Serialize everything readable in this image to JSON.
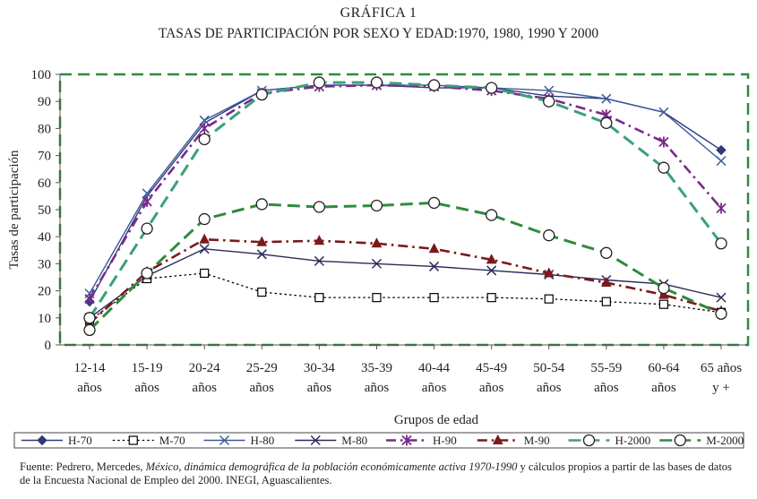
{
  "chart_data": {
    "type": "line",
    "title": "GRÁFICA 1",
    "subtitle": "TASAS DE PARTICIPACIÓN POR SEXO Y EDAD:1970, 1980, 1990 Y 2000",
    "xlabel": "Grupos de edad",
    "ylabel": "Tasas de participación",
    "ylim": [
      0,
      100
    ],
    "yticks": [
      "0",
      "10",
      "20",
      "30",
      "40",
      "50",
      "60",
      "70",
      "80",
      "90",
      "100"
    ],
    "categories": [
      [
        "12-14",
        "años"
      ],
      [
        "15-19",
        "años"
      ],
      [
        "20-24",
        "años"
      ],
      [
        "25-29",
        "años"
      ],
      [
        "30-34",
        "años"
      ],
      [
        "35-39",
        "años"
      ],
      [
        "40-44",
        "años"
      ],
      [
        "45-49",
        "años"
      ],
      [
        "50-54",
        "años"
      ],
      [
        "55-59",
        "años"
      ],
      [
        "60-64",
        "años"
      ],
      [
        "65 años",
        "y +"
      ]
    ],
    "series": [
      {
        "name": "H-70",
        "color": "#2e3a78",
        "dash": "solid",
        "marker": "diamond",
        "markers_at": [
          0,
          11
        ],
        "values": [
          16,
          55,
          82,
          94,
          96,
          96,
          95,
          95,
          92,
          91,
          86,
          72
        ]
      },
      {
        "name": "M-70",
        "color": "#000000",
        "dash": "dotted",
        "marker": "square",
        "markers_at": "all",
        "values": [
          9,
          24.5,
          26.5,
          19.5,
          17.5,
          17.5,
          17.5,
          17.5,
          17,
          16,
          15,
          12
        ]
      },
      {
        "name": "H-80",
        "color": "#3a5a9a",
        "dash": "solid",
        "marker": "x",
        "markers_at": [
          0,
          1,
          2,
          3,
          8,
          9,
          10,
          11
        ],
        "values": [
          19,
          56,
          83,
          94,
          96,
          96,
          96,
          95,
          94,
          91,
          86,
          68
        ]
      },
      {
        "name": "M-80",
        "color": "#2a2a5a",
        "dash": "solid",
        "marker": "x",
        "markers_at": "all",
        "values": [
          10,
          25.5,
          35.5,
          33.5,
          31,
          30,
          29,
          27.5,
          26,
          24,
          22.5,
          17.5
        ]
      },
      {
        "name": "H-90",
        "color": "#7a2a8a",
        "dash": "dashdot",
        "marker": "star",
        "markers_at": "all",
        "values": [
          17,
          53,
          80,
          93,
          95.5,
          96,
          95.5,
          94,
          91,
          85,
          75,
          50.5
        ]
      },
      {
        "name": "M-90",
        "color": "#7a1a1a",
        "dash": "dashdot",
        "marker": "triangle",
        "markers_at": "all",
        "values": [
          8,
          27,
          39,
          38,
          38.5,
          37.5,
          35.5,
          31.5,
          26.5,
          23,
          18.5,
          12.5
        ]
      },
      {
        "name": "H-2000",
        "color": "#3aa07a",
        "dash": "dashed",
        "marker": "circle",
        "markers_at": "all",
        "values": [
          10,
          43,
          76,
          92.5,
          97,
          97,
          96,
          95,
          90,
          82,
          65.5,
          37.5
        ]
      },
      {
        "name": "M-2000",
        "color": "#2e8b3e",
        "dash": "dashed",
        "marker": "circle",
        "markers_at": "all",
        "values": [
          5.5,
          26.5,
          46.5,
          52,
          51,
          51.5,
          52.5,
          48,
          40.5,
          34,
          21,
          11.5
        ]
      }
    ],
    "legend_position": "bottom",
    "source_prefix": "Fuente: Pedrero, Mercedes, ",
    "source_italic": "México, dinámica demográfica de la población económicamente activa 1970-1990",
    "source_suffix": " y cálculos propios a partir de las bases de datos de la Encuesta Nacional de Empleo del 2000. INEGI, Aguascalientes."
  }
}
